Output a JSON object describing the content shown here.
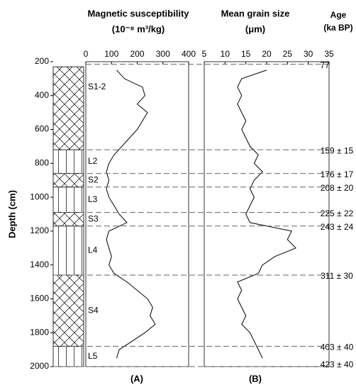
{
  "depth_axis": {
    "label": "Depth (cm)",
    "lim": [
      200,
      2000
    ],
    "ticks": [
      200,
      400,
      600,
      800,
      1000,
      1200,
      1400,
      1600,
      1800,
      2000
    ],
    "values": [
      250,
      300,
      350,
      400,
      450,
      500,
      550,
      600,
      650,
      700,
      750,
      800,
      850,
      900,
      950,
      1000,
      1050,
      1100,
      1150,
      1200,
      1250,
      1300,
      1350,
      1400,
      1450,
      1500,
      1550,
      1600,
      1650,
      1700,
      1750,
      1800,
      1850,
      1900,
      1950
    ]
  },
  "chart_data": [
    {
      "type": "line",
      "title": "Magnetic susceptibility",
      "subtitle": "(10⁻⁸ m³/kg)",
      "panel": "(A)",
      "color": "#000000",
      "xlim": [
        0,
        400
      ],
      "xticks": [
        0,
        100,
        200,
        300,
        400
      ],
      "values": [
        120,
        150,
        220,
        230,
        200,
        240,
        220,
        200,
        170,
        140,
        110,
        90,
        80,
        90,
        80,
        90,
        110,
        130,
        160,
        90,
        80,
        90,
        100,
        90,
        110,
        160,
        200,
        240,
        260,
        250,
        270,
        230,
        180,
        130,
        120
      ]
    },
    {
      "type": "line",
      "title": "Mean grain size",
      "subtitle": "(μm)",
      "panel": "(B)",
      "color": "#000000",
      "xlim": [
        5,
        35
      ],
      "xticks": [
        5,
        10,
        15,
        20,
        25,
        30,
        35
      ],
      "values": [
        20,
        14,
        13,
        14,
        13,
        14,
        15,
        14,
        15,
        16,
        18,
        17,
        19,
        17,
        16,
        17,
        16,
        15,
        16,
        26,
        25,
        27,
        22,
        19,
        18,
        13,
        14,
        13,
        14,
        15,
        14,
        16,
        17,
        18,
        19
      ]
    }
  ],
  "stratigraphy": [
    {
      "name": "S1-2",
      "top": 230,
      "bottom": 720,
      "pattern": "cross"
    },
    {
      "name": "L2",
      "top": 720,
      "bottom": 860,
      "pattern": "vertical"
    },
    {
      "name": "S2",
      "top": 860,
      "bottom": 940,
      "pattern": "cross"
    },
    {
      "name": "L3",
      "top": 940,
      "bottom": 1090,
      "pattern": "vertical"
    },
    {
      "name": "S3",
      "top": 1090,
      "bottom": 1170,
      "pattern": "cross"
    },
    {
      "name": "L4",
      "top": 1170,
      "bottom": 1460,
      "pattern": "vertical"
    },
    {
      "name": "S4",
      "top": 1460,
      "bottom": 1880,
      "pattern": "cross"
    },
    {
      "name": "L5",
      "top": 1880,
      "bottom": 2000,
      "pattern": "vertical"
    }
  ],
  "age_header": {
    "title": "Age",
    "unit": "(ka BP)"
  },
  "ages": [
    {
      "label": "77",
      "depth": 215
    },
    {
      "label": "159 ± 15",
      "depth": 720
    },
    {
      "label": "176 ± 17",
      "depth": 860
    },
    {
      "label": "208 ± 20",
      "depth": 940
    },
    {
      "label": "225 ± 22",
      "depth": 1090
    },
    {
      "label": "243 ± 24",
      "depth": 1170
    },
    {
      "label": "311 ± 30",
      "depth": 1460
    },
    {
      "label": "403 ± 40",
      "depth": 1880
    },
    {
      "label": "423 ± 40",
      "depth": 2000
    }
  ]
}
